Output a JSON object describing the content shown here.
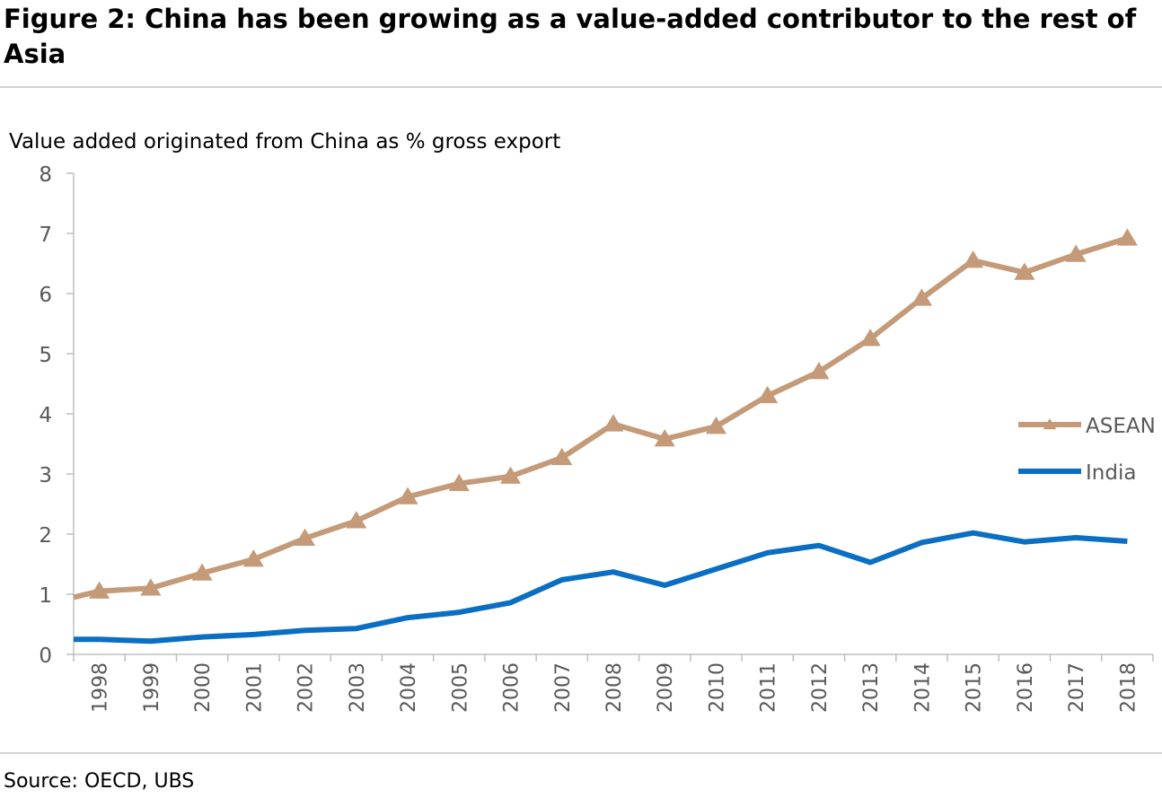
{
  "header": {
    "title": "Figure 2: China has been growing as a value-added contributor to the rest of Asia"
  },
  "footer": {
    "source": "Source: OECD, UBS"
  },
  "chart_data": {
    "type": "line",
    "title": "",
    "ylabel": "Value added originated from China as % gross export",
    "xlabel": "",
    "categories": [
      "1998",
      "1999",
      "2000",
      "2001",
      "2002",
      "2003",
      "2004",
      "2005",
      "2006",
      "2007",
      "2008",
      "2009",
      "2010",
      "2011",
      "2012",
      "2013",
      "2014",
      "2015",
      "2016",
      "2017",
      "2018"
    ],
    "ylim": [
      0,
      8
    ],
    "yticks": [
      0,
      1,
      2,
      3,
      4,
      5,
      6,
      7,
      8
    ],
    "grid": false,
    "legend_position": "right",
    "series": [
      {
        "name": "ASEAN",
        "color": "#c49a78",
        "marker": "triangle",
        "start_value": 0.95,
        "values": [
          1.05,
          1.1,
          1.35,
          1.58,
          1.93,
          2.22,
          2.62,
          2.84,
          2.96,
          3.27,
          3.83,
          3.58,
          3.79,
          4.3,
          4.7,
          5.25,
          5.92,
          6.55,
          6.35,
          6.65,
          6.92
        ]
      },
      {
        "name": "India",
        "color": "#0a6ec3",
        "marker": "none",
        "start_value": 0.25,
        "values": [
          0.25,
          0.22,
          0.29,
          0.33,
          0.4,
          0.43,
          0.61,
          0.7,
          0.86,
          1.24,
          1.37,
          1.15,
          1.42,
          1.69,
          1.81,
          1.53,
          1.86,
          2.02,
          1.87,
          1.94,
          1.88
        ]
      }
    ]
  }
}
